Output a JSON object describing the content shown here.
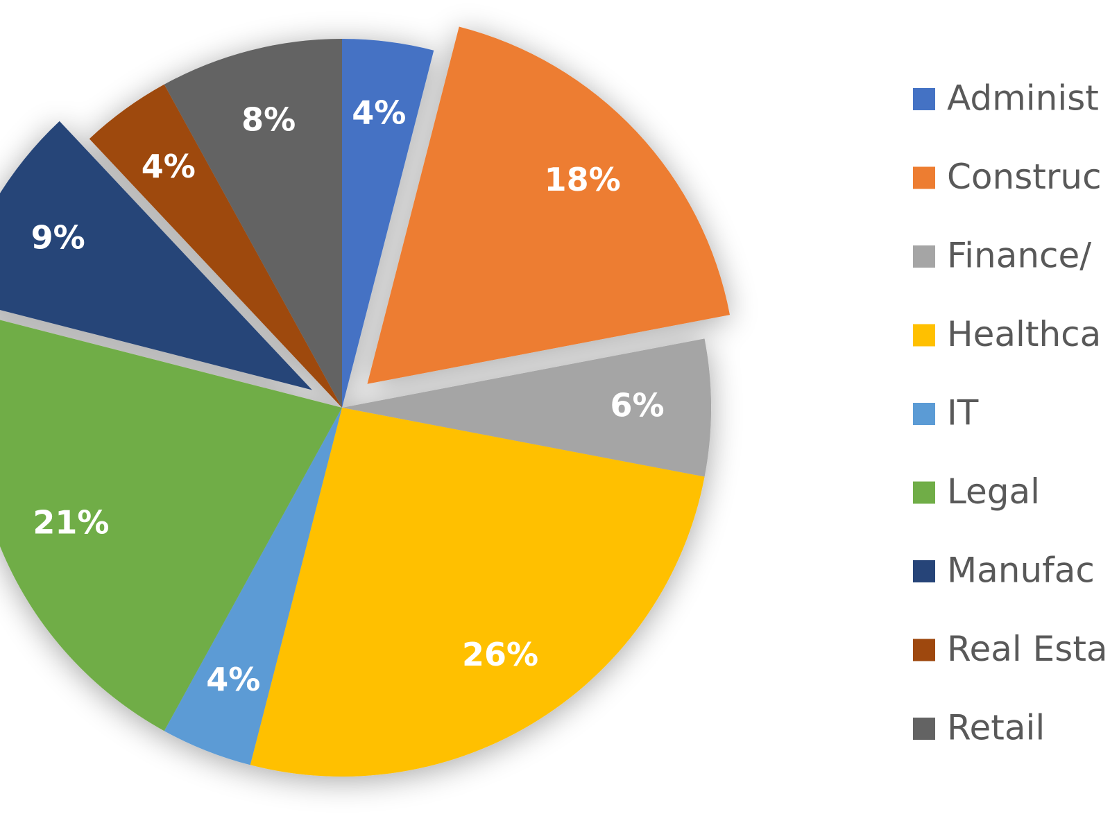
{
  "chart_data": {
    "type": "pie",
    "categories": [
      "Administ",
      "Construc",
      "Finance/",
      "Healthca",
      "IT",
      "Legal",
      "Manufac",
      "Real Esta",
      "Retail"
    ],
    "values": [
      4,
      18,
      6,
      26,
      4,
      21,
      9,
      4,
      8
    ],
    "value_labels": [
      "4%",
      "18%",
      "6%",
      "26%",
      "4%",
      "21%",
      "9%",
      "4%",
      "8%"
    ],
    "colors": [
      "#4472c4",
      "#ed7d31",
      "#a5a5a5",
      "#ffc000",
      "#5b9bd5",
      "#70ad47",
      "#264478",
      "#9e480e",
      "#636363"
    ],
    "exploded": [
      "Construc",
      "Manufac"
    ],
    "legend": "right"
  }
}
